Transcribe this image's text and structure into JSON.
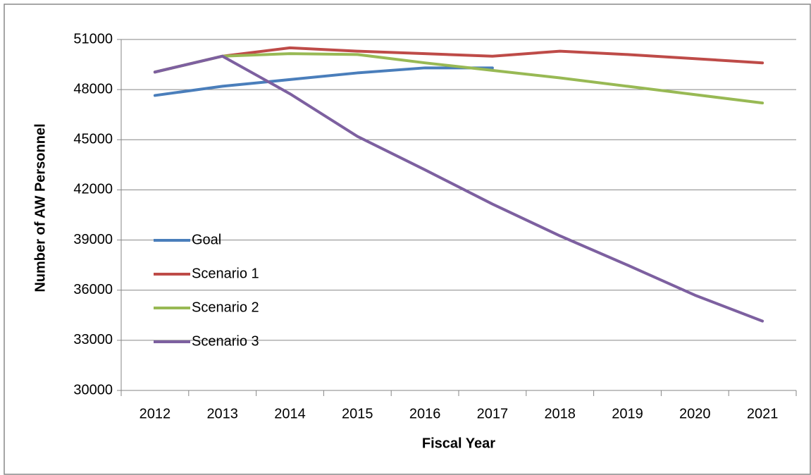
{
  "chart_data": {
    "type": "line",
    "x_label": "Fiscal Year",
    "y_label": "Number of AW Personnel",
    "categories": [
      "2012",
      "2013",
      "2014",
      "2015",
      "2016",
      "2017",
      "2018",
      "2019",
      "2020",
      "2021"
    ],
    "series": [
      {
        "name": "Goal",
        "color": "#4a7ebb",
        "values": [
          47650,
          48200,
          48600,
          49000,
          49300,
          49300,
          null,
          null,
          null,
          null
        ]
      },
      {
        "name": "Scenario 1",
        "color": "#be4b48",
        "values": [
          49050,
          50000,
          50500,
          50300,
          50150,
          50000,
          50300,
          50100,
          49850,
          49600
        ]
      },
      {
        "name": "Scenario 2",
        "color": "#98b954",
        "values": [
          49050,
          50000,
          50150,
          50100,
          49600,
          49150,
          48700,
          48200,
          47700,
          47200
        ]
      },
      {
        "name": "Scenario 3",
        "color": "#7d60a0",
        "values": [
          49050,
          50000,
          47750,
          45200,
          43200,
          41150,
          39250,
          37500,
          35700,
          34150
        ]
      }
    ],
    "ylim": [
      30000,
      51000
    ],
    "yticks": [
      30000,
      33000,
      36000,
      39000,
      42000,
      45000,
      48000,
      51000
    ],
    "grid": true,
    "legend": "left"
  }
}
